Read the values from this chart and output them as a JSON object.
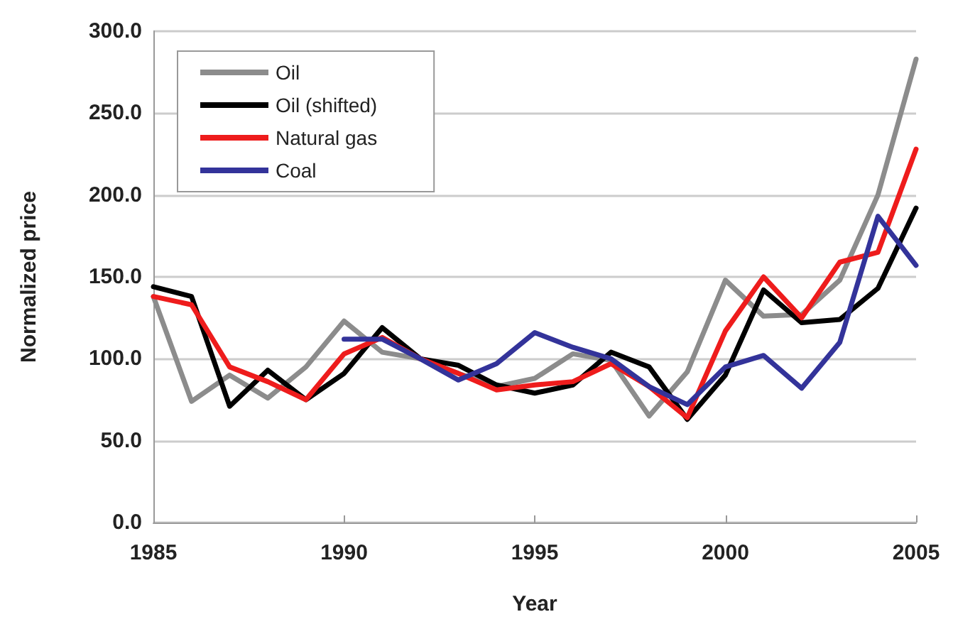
{
  "chart_data": {
    "type": "line",
    "xlabel": "Year",
    "ylabel": "Normalized price",
    "x": [
      1985,
      1986,
      1987,
      1988,
      1989,
      1990,
      1991,
      1992,
      1993,
      1994,
      1995,
      1996,
      1997,
      1998,
      1999,
      2000,
      2001,
      2002,
      2003,
      2004,
      2005
    ],
    "series": [
      {
        "name": "Oil",
        "color": "#8c8c8c",
        "values": [
          138,
          74,
          90,
          76,
          95,
          123,
          104,
          100,
          91,
          83,
          88,
          103,
          99,
          65,
          92,
          148,
          126,
          127,
          148,
          200,
          283
        ]
      },
      {
        "name": "Oil (shifted)",
        "color": "#000000",
        "values": [
          144,
          138,
          71,
          93,
          75,
          91,
          119,
          100,
          96,
          84,
          79,
          84,
          104,
          95,
          63,
          90,
          142,
          122,
          124,
          143,
          192
        ]
      },
      {
        "name": "Natural gas",
        "color": "#ee1c1c",
        "values": [
          138,
          133,
          95,
          86,
          75,
          103,
          113,
          100,
          91,
          81,
          84,
          86,
          97,
          83,
          64,
          117,
          150,
          125,
          159,
          165,
          228
        ]
      },
      {
        "name": "Coal",
        "color": "#33339a",
        "values": [
          null,
          null,
          null,
          null,
          null,
          112,
          112,
          100,
          87,
          97,
          116,
          107,
          100,
          83,
          72,
          95,
          102,
          82,
          110,
          187,
          157
        ]
      }
    ],
    "xlim": [
      1985,
      2005
    ],
    "xticks": [
      1985,
      1990,
      1995,
      2000,
      2005
    ],
    "ylim": [
      0,
      300
    ],
    "yticks": [
      {
        "value": 0,
        "label": "0.0"
      },
      {
        "value": 50,
        "label": "50.0"
      },
      {
        "value": 100,
        "label": "100.0"
      },
      {
        "value": 150,
        "label": "150.0"
      },
      {
        "value": 200,
        "label": "200.0"
      },
      {
        "value": 250,
        "label": "250.0"
      },
      {
        "value": 300,
        "label": "300.0"
      }
    ],
    "grid": "y",
    "legend": "top left",
    "marker": "none",
    "line_style": "solid"
  }
}
